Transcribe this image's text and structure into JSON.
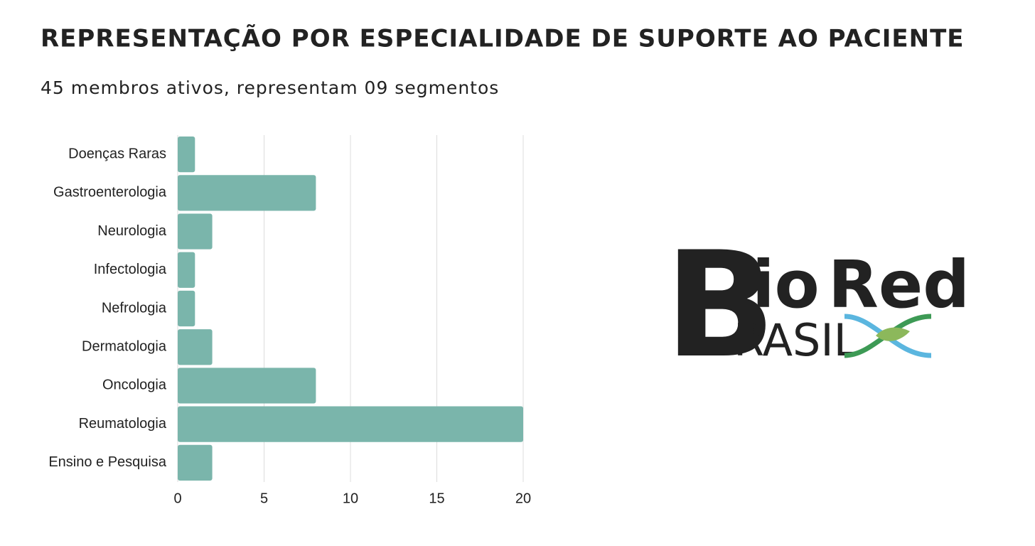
{
  "chart_data": {
    "type": "barh",
    "title": "REPRESENTAÇÃO POR ESPECIALIDADE DE SUPORTE AO PACIENTE",
    "subtitle": "45 membros ativos, representam 09 segmentos",
    "categories": [
      "Doenças Raras",
      "Gastroenterologia",
      "Neurologia",
      "Infectologia",
      "Nefrologia",
      "Dermatologia",
      "Oncologia",
      "Reumatologia",
      "Ensino e Pesquisa"
    ],
    "values": [
      1,
      8,
      2,
      1,
      1,
      2,
      8,
      20,
      2
    ],
    "color": "#7ab5ab",
    "xlim": [
      0,
      20
    ],
    "xticks": [
      0,
      5,
      10,
      15,
      20
    ],
    "grid": true
  },
  "logo": {
    "b": "B",
    "io": "io",
    "red": "Red",
    "rasil": "RASIL"
  }
}
